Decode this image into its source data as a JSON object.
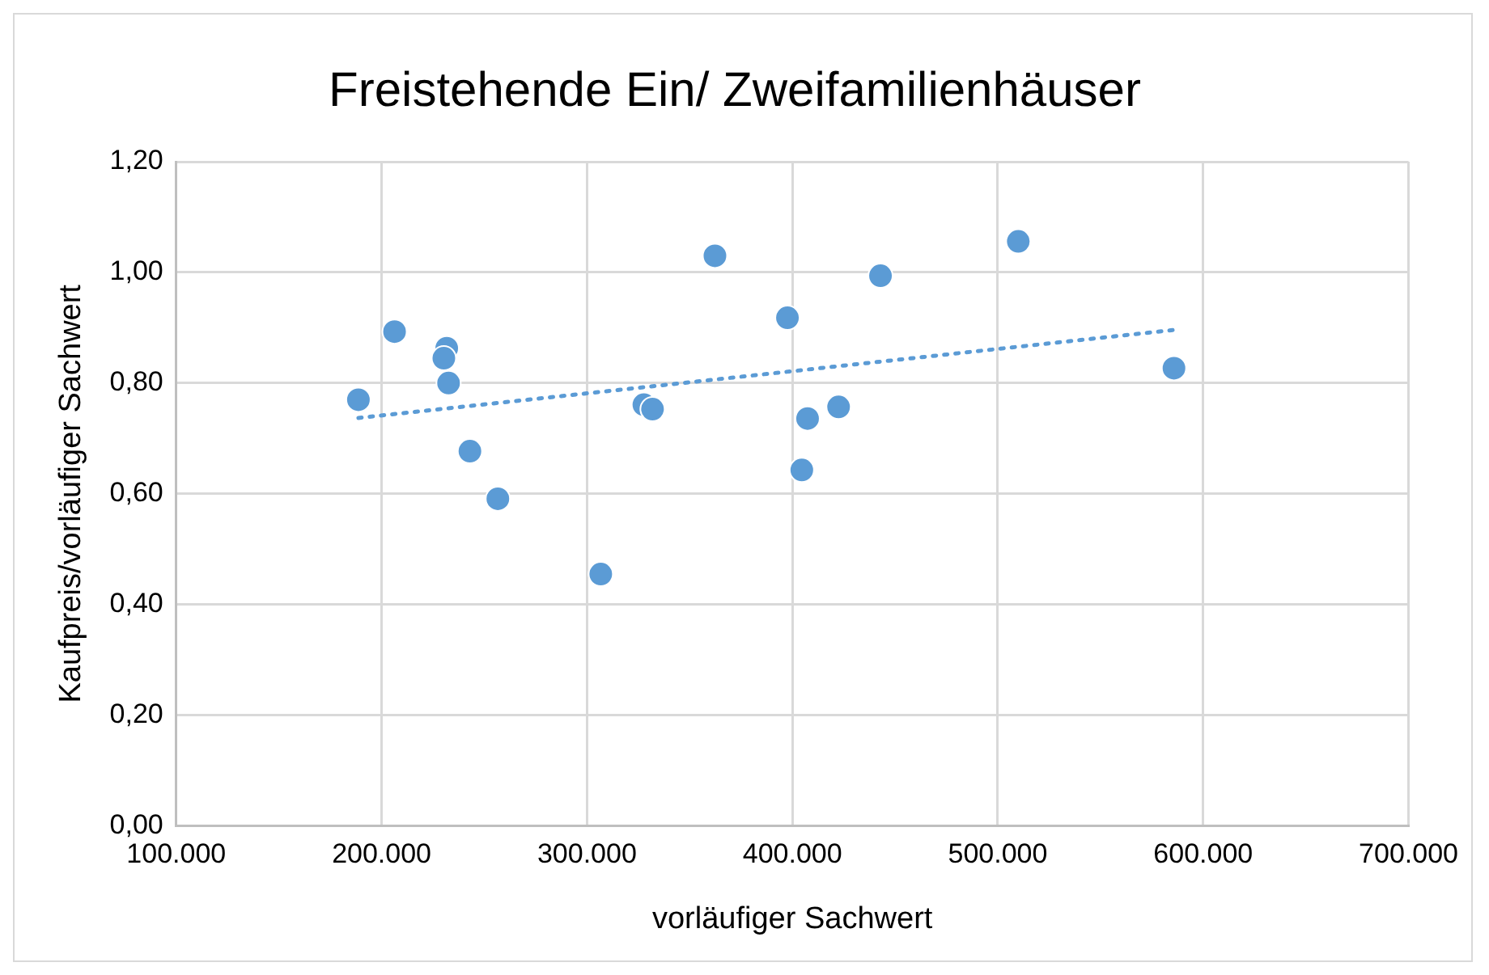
{
  "chart_data": {
    "type": "scatter",
    "title": "Freistehende Ein/ Zweifamilienhäuser",
    "xlabel": "vorläufiger Sachwert",
    "ylabel": "Kaufpreis/vorläufiger Sachwert",
    "series": [
      {
        "type": "scatter",
        "color": "#5b9bd5",
        "marker": "circle",
        "x": [
          188700,
          206300,
          231700,
          230300,
          232600,
          243000,
          256600,
          306700,
          327700,
          331900,
          362300,
          397600,
          404600,
          407400,
          422500,
          442900,
          510000,
          585800
        ],
        "values": [
          0.77,
          0.893,
          0.863,
          0.845,
          0.8,
          0.677,
          0.591,
          0.455,
          0.761,
          0.753,
          1.03,
          0.918,
          0.643,
          0.736,
          0.757,
          0.994,
          1.056,
          0.827
        ]
      },
      {
        "type": "line",
        "color": "#5b9bd5",
        "marker": "none",
        "line_style": "dotted",
        "x": [
          188700,
          585800
        ],
        "values": [
          0.737,
          0.896
        ]
      }
    ],
    "xlim": [
      100000,
      700000
    ],
    "xticks": [
      {
        "value": 100000,
        "label": "100.000"
      },
      {
        "value": 200000,
        "label": "200.000"
      },
      {
        "value": 300000,
        "label": "300.000"
      },
      {
        "value": 400000,
        "label": "400.000"
      },
      {
        "value": 500000,
        "label": "500.000"
      },
      {
        "value": 600000,
        "label": "600.000"
      },
      {
        "value": 700000,
        "label": "700.000"
      }
    ],
    "ylim": [
      0,
      1.2
    ],
    "yticks": [
      {
        "value": 0,
        "label": "0,00"
      },
      {
        "value": 0.2,
        "label": "0,20"
      },
      {
        "value": 0.4,
        "label": "0,40"
      },
      {
        "value": 0.6,
        "label": "0,60"
      },
      {
        "value": 0.8,
        "label": "0,80"
      },
      {
        "value": 1,
        "label": "1,00"
      },
      {
        "value": 1.2,
        "label": "1,20"
      }
    ],
    "grid": true,
    "legend": false
  }
}
